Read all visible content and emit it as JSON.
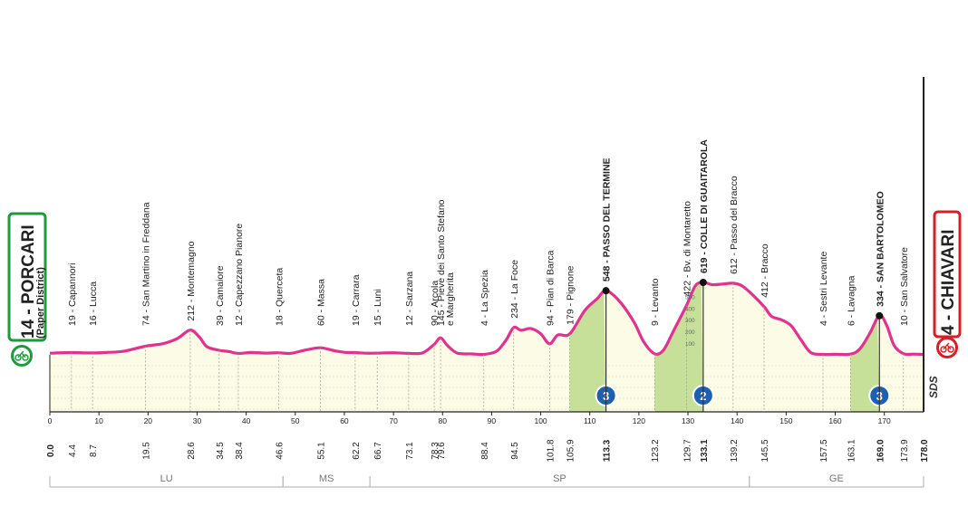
{
  "chart_data": {
    "type": "area",
    "x_unit": "km",
    "xlim": [
      0,
      178
    ],
    "ylim": [
      0,
      620
    ],
    "start": {
      "km": "14",
      "name": "PORCARI",
      "detail": "(Paper District)"
    },
    "finish": {
      "km": "4",
      "name": "CHIAVARI"
    },
    "brand": "SDS",
    "km_ticks": [
      0,
      10,
      20,
      30,
      40,
      50,
      60,
      70,
      80,
      90,
      100,
      110,
      120,
      130,
      140,
      150,
      160,
      170
    ],
    "elevation_ticks": [
      100,
      200,
      300,
      400,
      500
    ],
    "profile": [
      [
        0,
        14
      ],
      [
        4.4,
        19
      ],
      [
        8.7,
        16
      ],
      [
        12,
        22
      ],
      [
        15,
        30
      ],
      [
        19.5,
        74
      ],
      [
        23,
        95
      ],
      [
        26,
        140
      ],
      [
        28.6,
        212
      ],
      [
        30.5,
        150
      ],
      [
        32,
        70
      ],
      [
        34.5,
        39
      ],
      [
        36.5,
        28
      ],
      [
        38.4,
        12
      ],
      [
        41,
        20
      ],
      [
        44,
        15
      ],
      [
        46.6,
        18
      ],
      [
        49,
        12
      ],
      [
        52,
        40
      ],
      [
        55.1,
        60
      ],
      [
        58,
        35
      ],
      [
        60,
        22
      ],
      [
        62.2,
        19
      ],
      [
        64.5,
        14
      ],
      [
        66.7,
        15
      ],
      [
        70,
        18
      ],
      [
        73.1,
        12
      ],
      [
        76,
        18
      ],
      [
        78.3,
        90
      ],
      [
        79.6,
        145
      ],
      [
        81,
        80
      ],
      [
        83,
        15
      ],
      [
        86,
        8
      ],
      [
        88.4,
        4
      ],
      [
        91,
        30
      ],
      [
        93,
        130
      ],
      [
        94.5,
        234
      ],
      [
        96,
        210
      ],
      [
        98,
        225
      ],
      [
        100,
        180
      ],
      [
        101.8,
        94
      ],
      [
        103.5,
        170
      ],
      [
        105.9,
        179
      ],
      [
        109,
        380
      ],
      [
        111.5,
        480
      ],
      [
        113.3,
        548
      ],
      [
        116,
        460
      ],
      [
        119,
        280
      ],
      [
        121,
        110
      ],
      [
        123.2,
        9
      ],
      [
        125,
        40
      ],
      [
        127,
        200
      ],
      [
        129.7,
        422
      ],
      [
        131.5,
        590
      ],
      [
        133.1,
        619
      ],
      [
        135,
        600
      ],
      [
        137,
        605
      ],
      [
        139.2,
        612
      ],
      [
        141,
        590
      ],
      [
        143,
        520
      ],
      [
        145.5,
        412
      ],
      [
        147,
        330
      ],
      [
        149,
        300
      ],
      [
        151,
        250
      ],
      [
        153,
        130
      ],
      [
        155,
        20
      ],
      [
        157.5,
        4
      ],
      [
        160,
        5
      ],
      [
        163.1,
        6
      ],
      [
        165,
        50
      ],
      [
        167,
        180
      ],
      [
        169,
        334
      ],
      [
        170.5,
        250
      ],
      [
        172,
        80
      ],
      [
        173.9,
        10
      ],
      [
        176,
        6
      ],
      [
        178,
        4
      ]
    ],
    "waypoints": [
      {
        "km": "0.0",
        "km_value": 0,
        "label": "",
        "bold": true
      },
      {
        "km": "4.4",
        "km_value": 4.4,
        "label": "19 - Capannori",
        "bold": false
      },
      {
        "km": "8.7",
        "km_value": 8.7,
        "label": "16 - Lucca",
        "bold": false
      },
      {
        "km": "19.5",
        "km_value": 19.5,
        "label": "74 - San Martino in Freddana",
        "bold": false
      },
      {
        "km": "28.6",
        "km_value": 28.6,
        "label": "212 - Montemagno",
        "bold": false
      },
      {
        "km": "34.5",
        "km_value": 34.5,
        "label": "39 - Camaiore",
        "bold": false
      },
      {
        "km": "38.4",
        "km_value": 38.4,
        "label": "12 - Capezzano Pianore",
        "bold": false
      },
      {
        "km": "46.6",
        "km_value": 46.6,
        "label": "18 - Querceta",
        "bold": false
      },
      {
        "km": "55.1",
        "km_value": 55.1,
        "label": "60 - Massa",
        "bold": false
      },
      {
        "km": "62.2",
        "km_value": 62.2,
        "label": "19 - Carrara",
        "bold": false
      },
      {
        "km": "66.7",
        "km_value": 66.7,
        "label": "15 - Luni",
        "bold": false
      },
      {
        "km": "73.1",
        "km_value": 73.1,
        "label": "12 - Sarzana",
        "bold": false
      },
      {
        "km": "78.3",
        "km_value": 78.3,
        "label": "90 - Arcola",
        "bold": false
      },
      {
        "km": "79.6",
        "km_value": 79.6,
        "label": "145 - Pieve dei Santo Stefano",
        "label2": "e Margherita",
        "bold": false
      },
      {
        "km": "88.4",
        "km_value": 88.4,
        "label": "4 - La Spezia",
        "bold": false
      },
      {
        "km": "94.5",
        "km_value": 94.5,
        "label": "234 - La Foce",
        "bold": false
      },
      {
        "km": "101.8",
        "km_value": 101.8,
        "label": "94 - Pian di Barca",
        "bold": false
      },
      {
        "km": "105.9",
        "km_value": 105.9,
        "label": "179 - Pignone",
        "bold": false
      },
      {
        "km": "113.3",
        "km_value": 113.3,
        "label": "548 - PASSO DEL TERMINE",
        "bold": true
      },
      {
        "km": "123.2",
        "km_value": 123.2,
        "label": "9 - Levanto",
        "bold": false
      },
      {
        "km": "129.7",
        "km_value": 129.7,
        "label": "422 - Bv. di Montaretto",
        "bold": false
      },
      {
        "km": "133.1",
        "km_value": 133.1,
        "label": "619 - COLLE DI GUAITAROLA",
        "bold": true
      },
      {
        "km": "139.2",
        "km_value": 139.2,
        "label": "612 - Passo del Bracco",
        "bold": false
      },
      {
        "km": "145.5",
        "km_value": 145.5,
        "label": "412 - Bracco",
        "bold": false
      },
      {
        "km": "157.5",
        "km_value": 157.5,
        "label": "4 - Sestri Levante",
        "bold": false
      },
      {
        "km": "163.1",
        "km_value": 163.1,
        "label": "6 - Lavagna",
        "bold": false
      },
      {
        "km": "169.0",
        "km_value": 169.0,
        "label": "334 - SAN BARTOLOMEO",
        "bold": true
      },
      {
        "km": "173.9",
        "km_value": 173.9,
        "label": "10 - San Salvatore",
        "bold": false
      },
      {
        "km": "178.0",
        "km_value": 178.0,
        "label": "",
        "bold": true
      }
    ],
    "climbs": [
      {
        "category": "3",
        "from_km": 105.9,
        "to_km": 113.3
      },
      {
        "category": "2",
        "from_km": 123.2,
        "to_km": 133.1
      },
      {
        "category": "3",
        "from_km": 163.1,
        "to_km": 169.0
      }
    ],
    "regions": [
      {
        "code": "LU",
        "from_km": 0,
        "to_km": 47.5
      },
      {
        "code": "MS",
        "from_km": 47.5,
        "to_km": 65.2
      },
      {
        "code": "SP",
        "from_km": 65.2,
        "to_km": 142.5
      },
      {
        "code": "GE",
        "from_km": 142.5,
        "to_km": 178
      }
    ]
  },
  "colors": {
    "profile_line": "#e0338f",
    "fill": "#fbfbe6",
    "climb_fill": "#c6e09a",
    "start_accent": "#1e9a3c",
    "finish_accent": "#d61f26",
    "climb_badge": "#1d5fb0",
    "text": "#222222",
    "region_line": "#bdbdbd"
  }
}
